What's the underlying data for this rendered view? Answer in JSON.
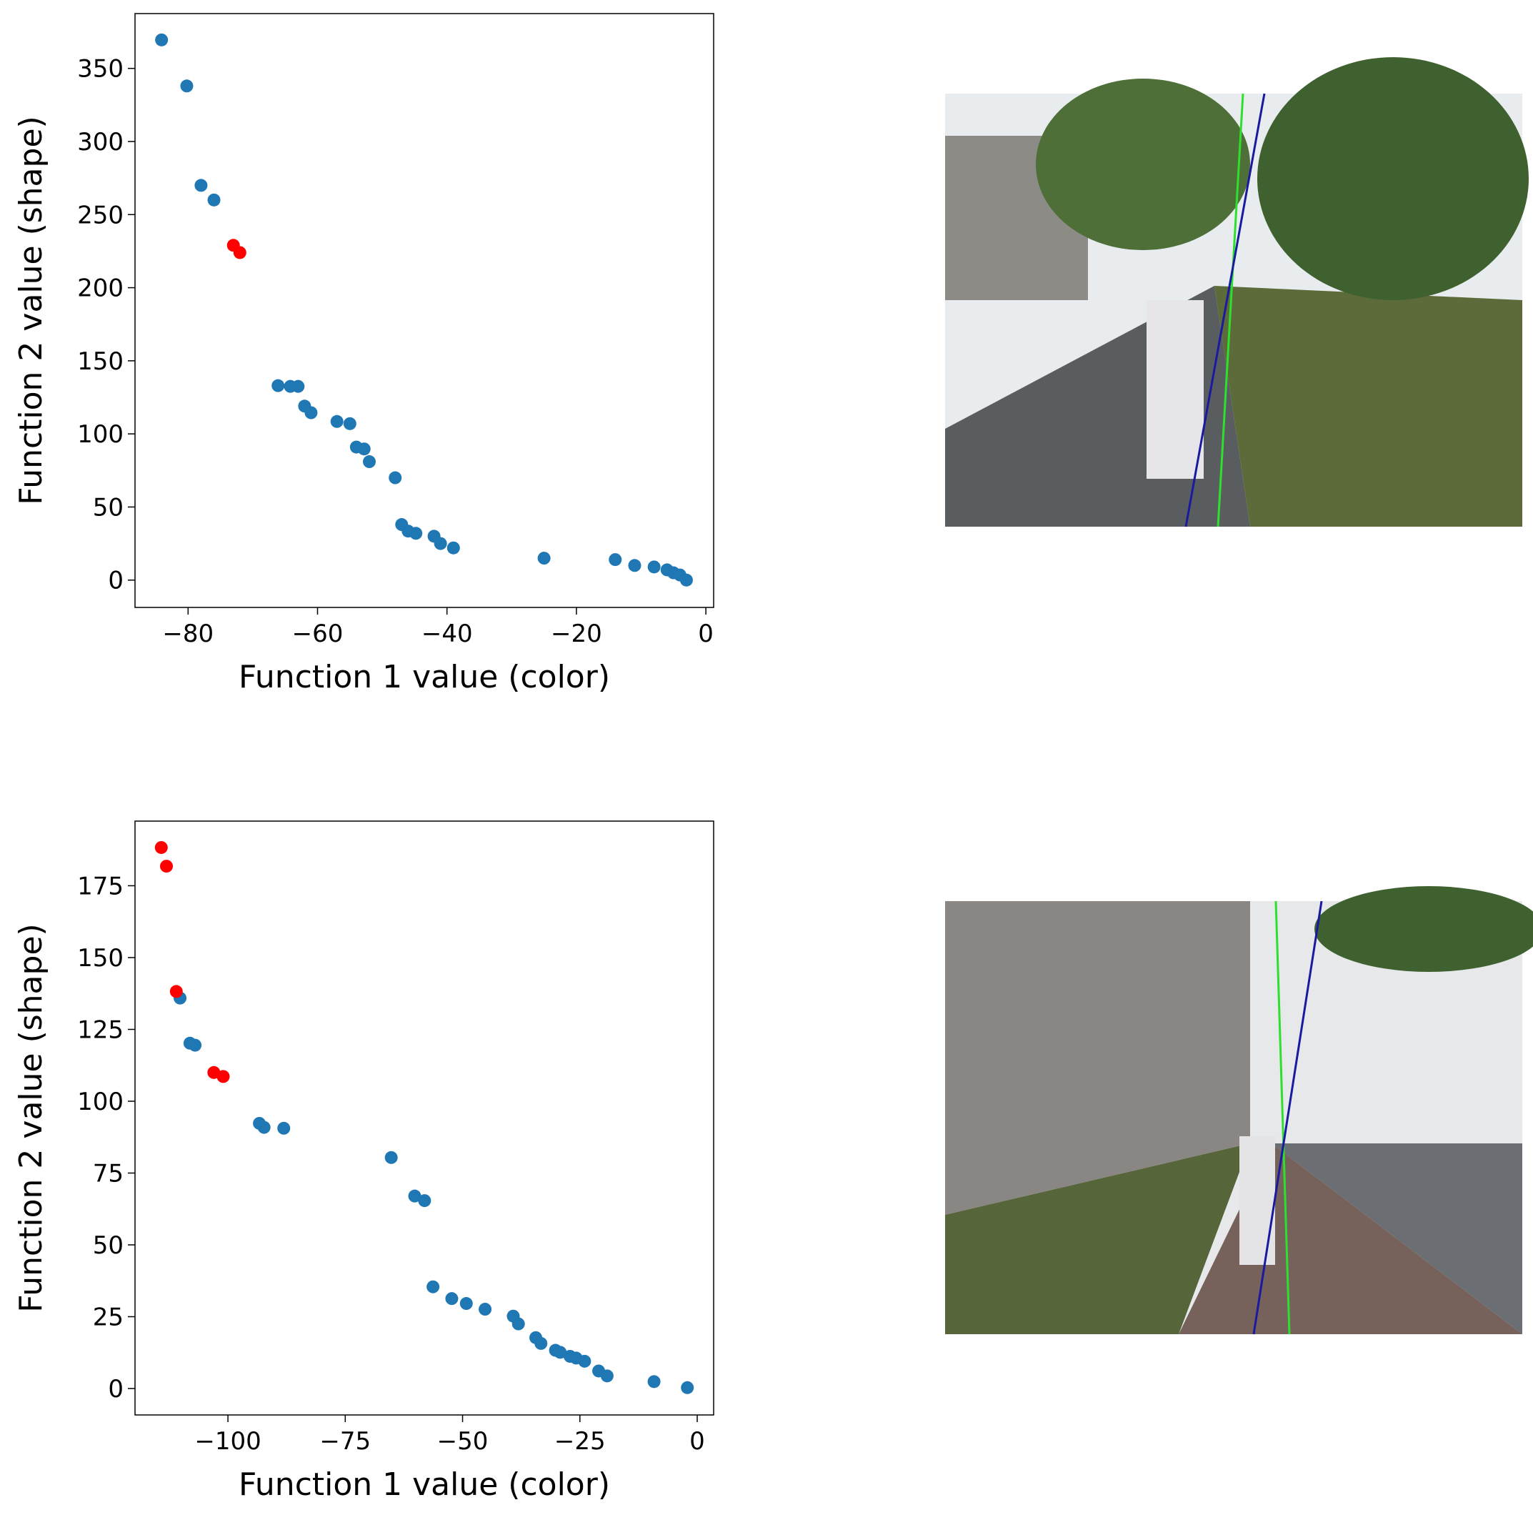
{
  "chart_data": [
    {
      "type": "scatter",
      "xlabel": "Function 1 value (color)",
      "ylabel": "Function 2 value (shape)",
      "xlim": [
        -88.2,
        1.2
      ],
      "ylim": [
        -18.7,
        387.5
      ],
      "xticks": [
        {
          "value": -80,
          "label": "−80"
        },
        {
          "value": -60,
          "label": "−60"
        },
        {
          "value": -40,
          "label": "−40"
        },
        {
          "value": -20,
          "label": "−20"
        },
        0
      ],
      "yticks": [
        0,
        50,
        100,
        150,
        200,
        250,
        300,
        350
      ],
      "series": [
        {
          "color": "#1f77b4",
          "x": [
            -84.1,
            -80.2,
            -78,
            -76,
            -66.1,
            -64.2,
            -63,
            -62,
            -61,
            -57,
            -55,
            -54,
            -52.8,
            -52,
            -48,
            -47,
            -46,
            -44.8,
            -42,
            -41,
            -39,
            -25,
            -14,
            -11,
            -8,
            -6,
            -5,
            -4,
            -3
          ],
          "values": [
            369.5,
            338,
            270,
            260,
            133,
            132.5,
            132.5,
            119,
            114.5,
            108.5,
            107,
            91,
            89.7,
            81,
            70,
            38,
            33.5,
            32,
            30,
            25,
            22,
            15,
            14,
            10,
            9,
            7,
            5,
            3.5,
            0
          ]
        },
        {
          "color": "#ff0000",
          "x": [
            -73,
            -72
          ],
          "values": [
            229,
            224
          ]
        }
      ]
    },
    {
      "type": "scatter",
      "xlabel": "Function 1 value (color)",
      "ylabel": "Function 2 value (shape)",
      "xlim": [
        -119.8,
        3.5
      ],
      "ylim": [
        -9.2,
        197.5
      ],
      "xticks": [
        {
          "value": -100,
          "label": "−100"
        },
        {
          "value": -75,
          "label": "−75"
        },
        {
          "value": -50,
          "label": "−50"
        },
        {
          "value": -25,
          "label": "−25"
        },
        0
      ],
      "yticks": [
        0,
        25,
        50,
        75,
        100,
        125,
        150,
        175
      ],
      "series": [
        {
          "color": "#1f77b4",
          "x": [
            -110.2,
            -108.1,
            -107,
            -93.3,
            -92.3,
            -88.1,
            -65.2,
            -60.2,
            -58.1,
            -56.3,
            -52.3,
            -49.2,
            -45.2,
            -39.2,
            -38.1,
            -34.4,
            -33.3,
            -30.2,
            -29.2,
            -27.1,
            -25.8,
            -24,
            -21,
            -19.2,
            -9.2,
            -2.1
          ],
          "values": [
            135.9,
            120.2,
            119.5,
            92.3,
            90.9,
            90.6,
            80.4,
            67,
            65.4,
            35.4,
            31.3,
            29.6,
            27.6,
            25.2,
            22.5,
            17.7,
            15.7,
            13.3,
            12.6,
            11.2,
            10.6,
            9.5,
            6.1,
            4.4,
            2.4,
            0.3
          ]
        },
        {
          "color": "#ff0000",
          "x": [
            -114.2,
            -113.1,
            -111,
            -103,
            -101
          ],
          "values": [
            188.3,
            181.8,
            138.2,
            110,
            108.6
          ]
        }
      ]
    }
  ]
}
